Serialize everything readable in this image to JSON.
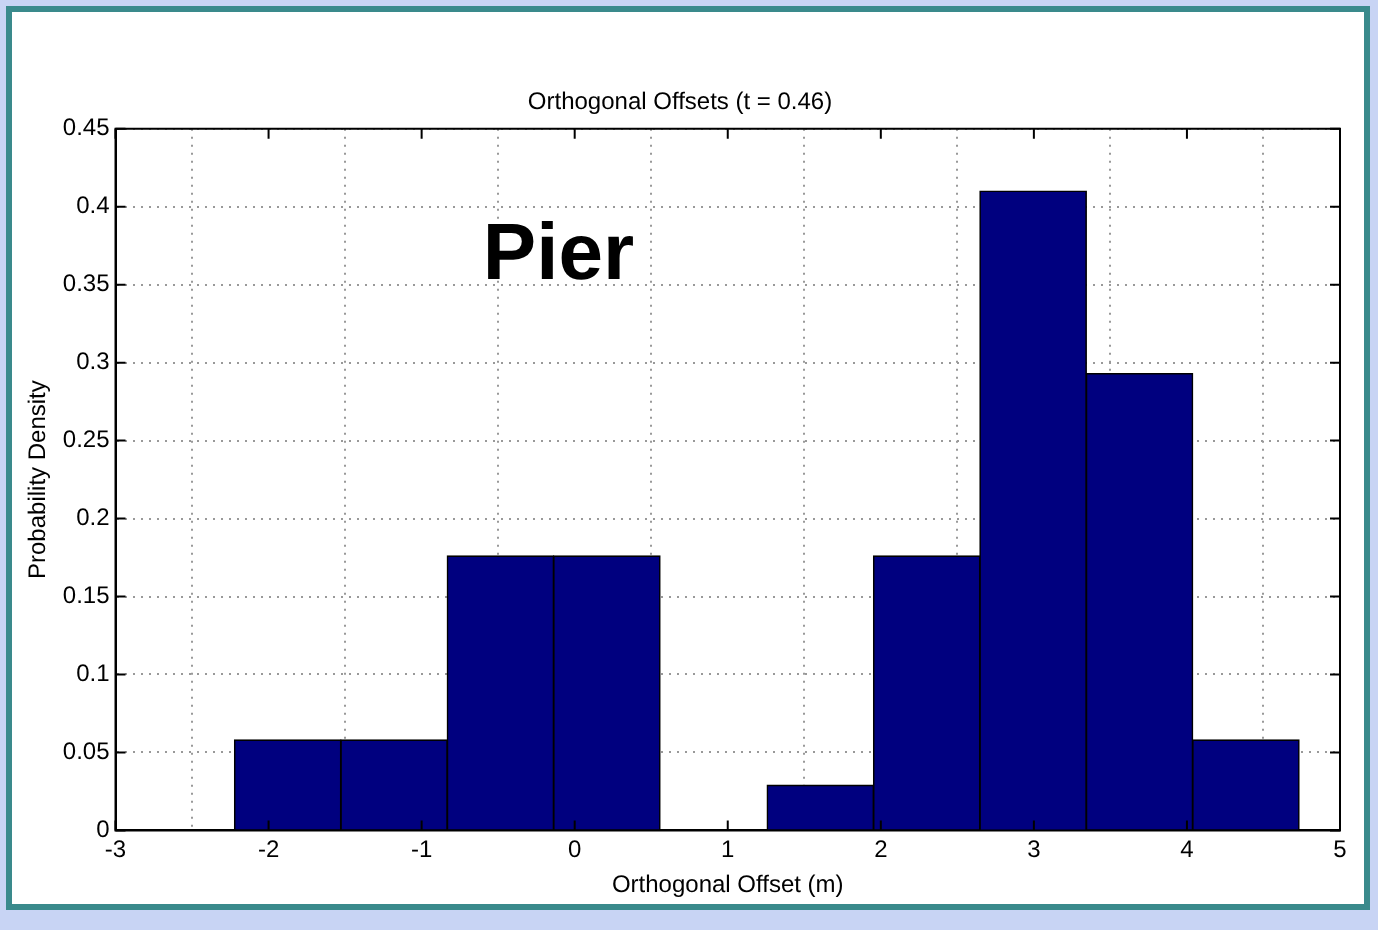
{
  "chart_data": {
    "type": "histogram",
    "title": "Orthogonal Offsets (t = 0.46)",
    "xlabel": "Orthogonal Offset (m)",
    "ylabel": "Probability Density",
    "annotations": [
      "Pier"
    ],
    "bins": [
      -2.22,
      -1.53,
      -0.83,
      -0.14,
      0.56,
      1.26,
      1.95,
      2.65,
      3.34,
      4.04,
      4.73
    ],
    "values": [
      0.058,
      0.058,
      0.176,
      0.176,
      0,
      0.029,
      0.176,
      0.41,
      0.293,
      0.058
    ],
    "color": "#00007f",
    "xlim": [
      -3,
      5
    ],
    "xticks": [
      -3,
      -2,
      -1,
      0,
      1,
      2,
      3,
      4,
      5
    ],
    "ylim": [
      0,
      0.45
    ],
    "yticks": [
      0,
      0.05,
      0.1,
      0.15,
      0.2,
      0.25,
      0.3,
      0.35,
      0.4,
      0.45
    ],
    "grid": true
  }
}
